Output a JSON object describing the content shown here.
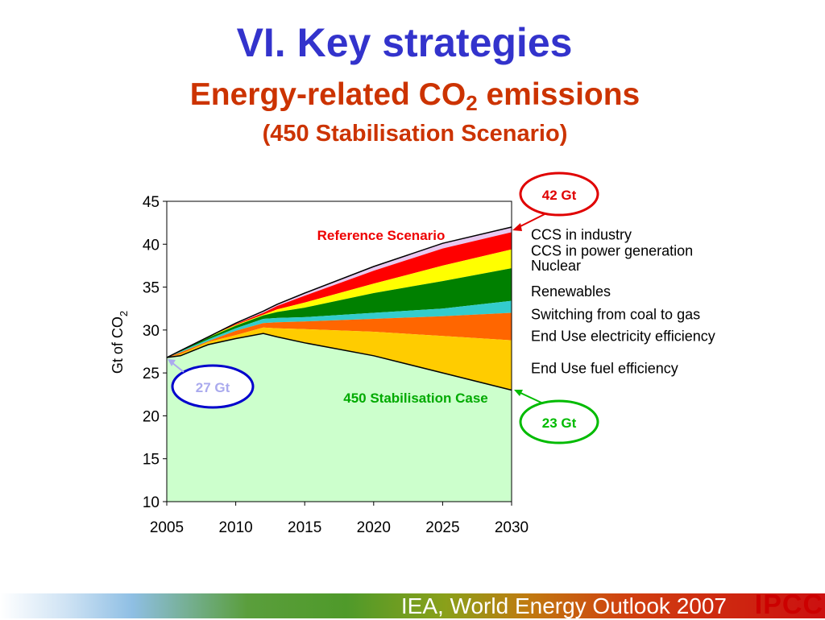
{
  "slide": {
    "title": "VI. Key strategies",
    "subtitle_main": "Energy-related CO",
    "subtitle_sub": "2",
    "subtitle_tail": " emissions",
    "subtitle2": "(450 Stabilisation Scenario)",
    "footer_source": "IEA, World Energy Outlook 2007",
    "footer_logo": "IPCC"
  },
  "chart_data": {
    "type": "area",
    "title": "Energy-related CO2 emissions (450 Stabilisation Scenario)",
    "ylabel_main": "Gt of CO",
    "ylabel_sub": "2",
    "ylim": [
      10,
      45
    ],
    "xlim": [
      2005,
      2030
    ],
    "yticks": [
      10,
      15,
      20,
      25,
      30,
      35,
      40,
      45
    ],
    "xticks": [
      2005,
      2010,
      2015,
      2020,
      2025,
      2030
    ],
    "x": [
      2005,
      2006,
      2008,
      2010,
      2012,
      2013,
      2015,
      2020,
      2025,
      2030
    ],
    "reference_scenario": [
      26.8,
      27.6,
      29.2,
      30.8,
      32.2,
      33.0,
      34.3,
      37.4,
      40.1,
      42.0
    ],
    "stabilisation_450": [
      26.8,
      27.0,
      28.3,
      29.0,
      29.6,
      29.2,
      28.5,
      27.0,
      25.0,
      23.0
    ],
    "wedges": [
      {
        "name": "CCS in industry",
        "color": "#e8c8f0",
        "top": [
          26.8,
          27.6,
          29.2,
          30.8,
          32.2,
          33.0,
          34.3,
          37.4,
          40.1,
          42.0
        ],
        "bottom": [
          26.8,
          27.6,
          29.2,
          30.7,
          32.0,
          32.8,
          34.0,
          36.9,
          39.5,
          41.4
        ]
      },
      {
        "name": "CCS in power generation",
        "color": "#ff0000",
        "top": [
          26.8,
          27.6,
          29.2,
          30.7,
          32.0,
          32.8,
          34.0,
          36.9,
          39.5,
          41.4
        ],
        "bottom": [
          26.8,
          27.6,
          29.2,
          30.6,
          31.8,
          32.4,
          33.2,
          35.4,
          37.5,
          39.4
        ]
      },
      {
        "name": "Nuclear",
        "color": "#ffff00",
        "top": [
          26.8,
          27.6,
          29.2,
          30.6,
          31.8,
          32.4,
          33.2,
          35.4,
          37.5,
          39.4
        ],
        "bottom": [
          26.8,
          27.6,
          29.1,
          30.5,
          31.7,
          32.1,
          32.6,
          34.3,
          35.7,
          37.2
        ]
      },
      {
        "name": "Renewables",
        "color": "#008000",
        "top": [
          26.8,
          27.6,
          29.1,
          30.5,
          31.7,
          32.1,
          32.6,
          34.3,
          35.7,
          37.2
        ],
        "bottom": [
          26.8,
          27.5,
          28.9,
          30.2,
          31.3,
          31.4,
          31.5,
          32.0,
          32.5,
          33.4
        ]
      },
      {
        "name": "Switching from coal to gas",
        "color": "#33cccc",
        "top": [
          26.8,
          27.5,
          28.9,
          30.2,
          31.3,
          31.4,
          31.5,
          32.0,
          32.5,
          33.4
        ],
        "bottom": [
          26.8,
          27.4,
          28.7,
          29.9,
          30.8,
          30.9,
          31.0,
          31.3,
          31.6,
          32.0
        ]
      },
      {
        "name": "End Use electricity efficiency",
        "color": "#ff6600",
        "top": [
          26.8,
          27.4,
          28.7,
          29.9,
          30.8,
          30.9,
          31.0,
          31.3,
          31.6,
          32.0
        ],
        "bottom": [
          26.8,
          27.2,
          28.6,
          29.4,
          30.3,
          30.2,
          30.1,
          29.8,
          29.3,
          28.8
        ]
      },
      {
        "name": "End Use fuel efficiency",
        "color": "#ffcc00",
        "top": [
          26.8,
          27.2,
          28.6,
          29.4,
          30.3,
          30.2,
          30.1,
          29.8,
          29.3,
          28.8
        ],
        "bottom": [
          26.8,
          27.0,
          28.3,
          29.0,
          29.6,
          29.2,
          28.5,
          27.0,
          25.0,
          23.0
        ]
      },
      {
        "name": "450 Stabilisation Case",
        "color": "#ccffcc",
        "top": [
          26.8,
          27.0,
          28.3,
          29.0,
          29.6,
          29.2,
          28.5,
          27.0,
          25.0,
          23.0
        ],
        "bottom": [
          10,
          10,
          10,
          10,
          10,
          10,
          10,
          10,
          10,
          10
        ]
      }
    ],
    "legend": [
      {
        "label": "CCS in industry",
        "y": 41.2
      },
      {
        "label": "CCS in power generation",
        "y": 39.3
      },
      {
        "label": "Nuclear",
        "y": 37.6
      },
      {
        "label": "Renewables",
        "y": 34.6
      },
      {
        "label": "Switching from coal to gas",
        "y": 31.9
      },
      {
        "label": "End Use electricity efficiency",
        "y": 29.4
      },
      {
        "label": "End Use fuel efficiency",
        "y": 25.6
      }
    ],
    "annotations": {
      "reference_label": "Reference Scenario",
      "stabilisation_label": "450 Stabilisation Case",
      "callout_top": {
        "text": "42 Gt",
        "color": "#e00000"
      },
      "callout_bottom": {
        "text": "23 Gt",
        "color": "#00bb00"
      },
      "callout_start": {
        "text": "27 Gt",
        "color": "#0000cc",
        "text_color": "#aaaaee"
      }
    }
  }
}
